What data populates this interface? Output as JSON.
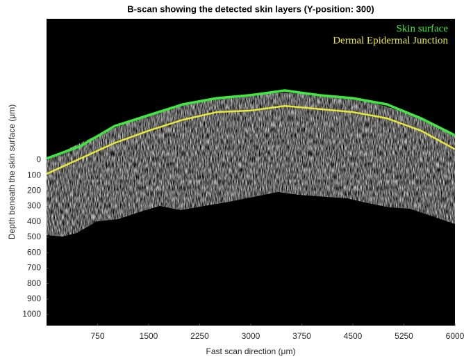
{
  "chart_data": {
    "type": "line",
    "title": "B-scan showing the detected skin layers (Y-position: 300)",
    "x_label": "Fast scan direction (μm)",
    "y_label": "Depth beneath the skin surface (μm)",
    "x": [
      0,
      500,
      1000,
      1500,
      2000,
      2500,
      3000,
      3500,
      4000,
      4500,
      5000,
      5500,
      6000
    ],
    "series": [
      {
        "name": "Skin surface",
        "color": "#3ee83e",
        "values": [
          -10,
          -90,
          -220,
          -290,
          -360,
          -400,
          -420,
          -450,
          -420,
          -400,
          -360,
          -270,
          -160
        ]
      },
      {
        "name": "Dermal Epidermal Junction",
        "color": "#e8e83a",
        "values": [
          90,
          -10,
          -110,
          -190,
          -260,
          -310,
          -320,
          -350,
          -330,
          -310,
          -270,
          -190,
          -70
        ]
      }
    ],
    "xlim": [
      0,
      6000
    ],
    "xticks": [
      750,
      1500,
      2250,
      3000,
      3750,
      4500,
      5250,
      6000
    ],
    "ylim": [
      -914,
      1072
    ],
    "y_reversed": true,
    "yticks": [
      0,
      100,
      200,
      300,
      400,
      500,
      600,
      700,
      800,
      900,
      1000
    ],
    "legend": "top-right"
  }
}
